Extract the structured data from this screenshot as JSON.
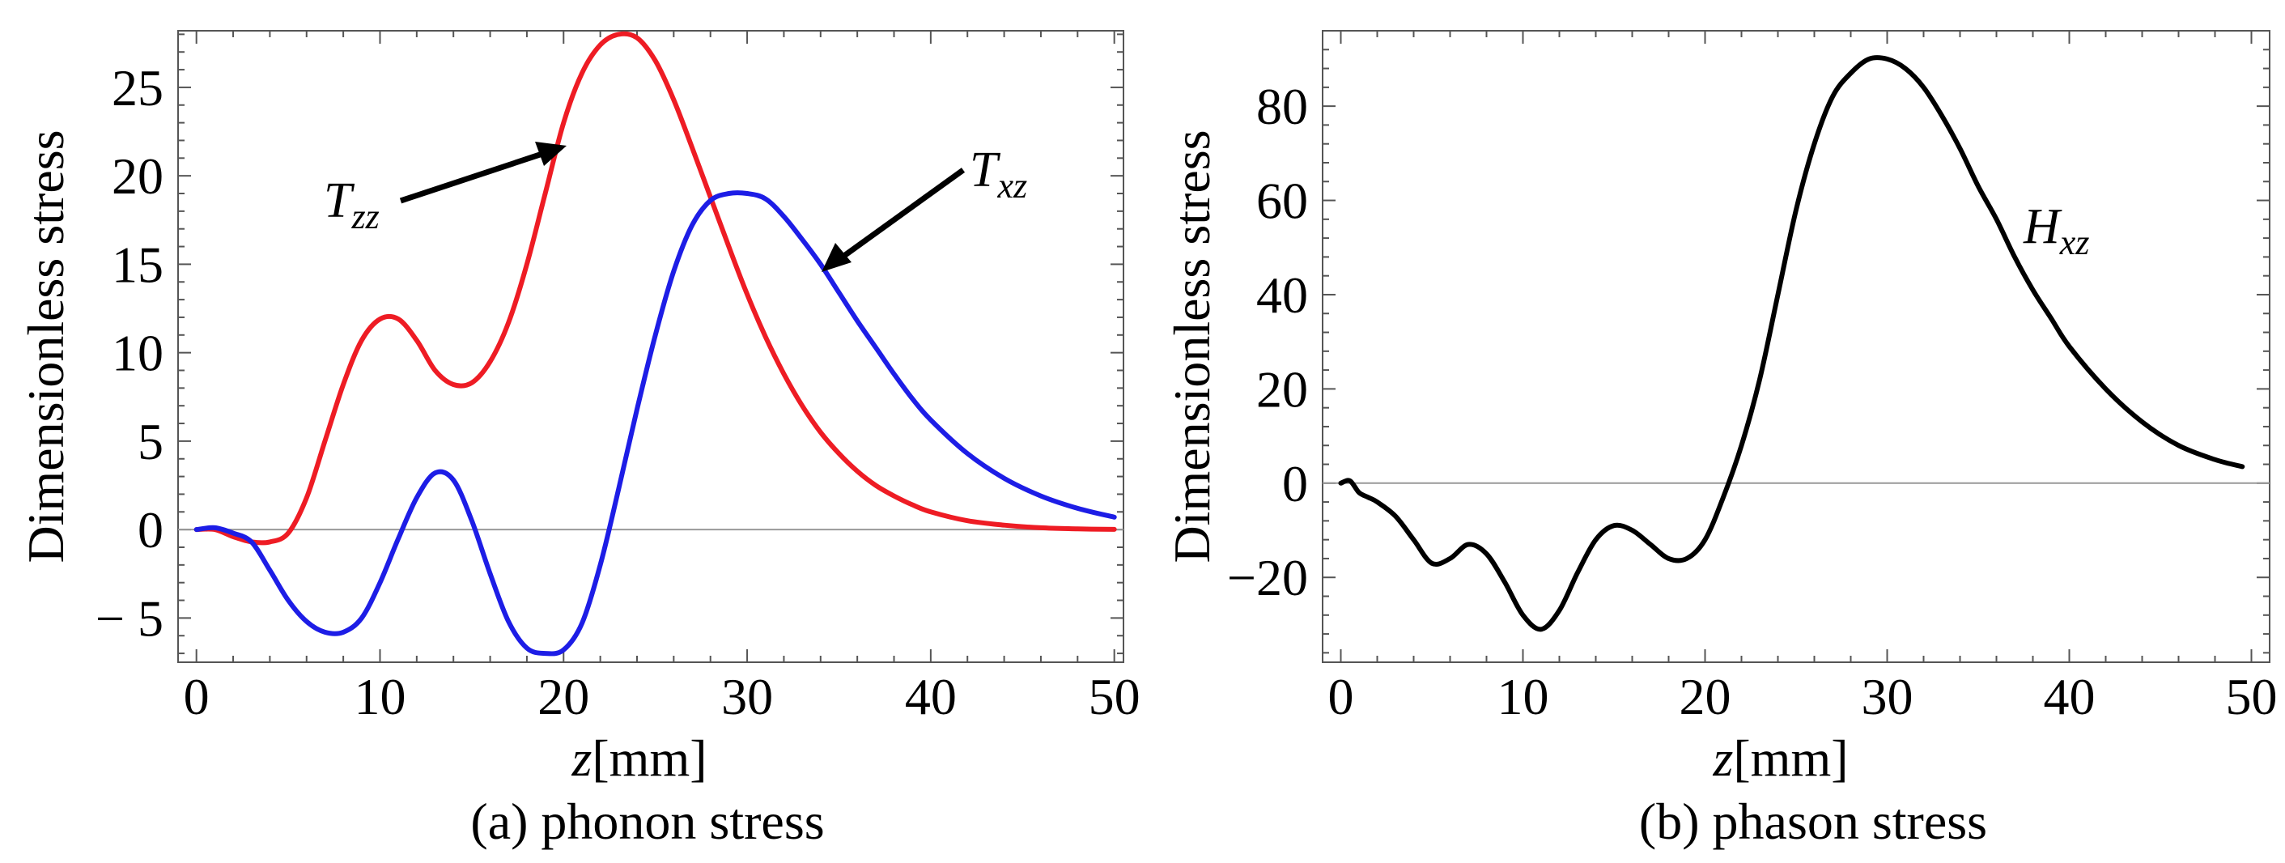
{
  "chart_data": [
    {
      "id": "a",
      "type": "line",
      "caption": "(a) phonon stress",
      "xlabel_var": "z",
      "xlabel_unit": "[mm]",
      "ylabel": "Dimensionless stress",
      "xlim": [
        -1,
        50.5
      ],
      "ylim": [
        -7.5,
        28.2
      ],
      "xticks": [
        0,
        10,
        20,
        30,
        40,
        50
      ],
      "yticks": [
        -5,
        0,
        5,
        10,
        15,
        20,
        25
      ],
      "ytick_labels": [
        "− 5",
        "0",
        "5",
        "10",
        "15",
        "20",
        "25"
      ],
      "series": [
        {
          "name": "T_zz",
          "color": "#ee1c24",
          "x": [
            0,
            1,
            2,
            3,
            4,
            5,
            6,
            7,
            8,
            9,
            10,
            11,
            12,
            13,
            14,
            15,
            16,
            17,
            18,
            19,
            20,
            21,
            22,
            23,
            24,
            25,
            26,
            27,
            28,
            29,
            30,
            31,
            32,
            33,
            34,
            35,
            36,
            37,
            38,
            39,
            40,
            42,
            44,
            46,
            48,
            50
          ],
          "y": [
            0,
            0,
            -0.4,
            -0.7,
            -0.7,
            -0.2,
            1.8,
            5.0,
            8.2,
            10.7,
            11.9,
            11.9,
            10.7,
            9.0,
            8.2,
            8.3,
            9.5,
            11.7,
            15.0,
            19.0,
            23.0,
            25.8,
            27.4,
            28.0,
            27.8,
            26.5,
            24.3,
            21.6,
            18.8,
            16.0,
            13.3,
            10.9,
            8.8,
            7.0,
            5.5,
            4.3,
            3.3,
            2.5,
            1.9,
            1.4,
            1.0,
            0.5,
            0.25,
            0.1,
            0.04,
            0.01
          ]
        },
        {
          "name": "T_xz",
          "color": "#1d1de6",
          "x": [
            0,
            1,
            2,
            3,
            4,
            5,
            6,
            7,
            8,
            9,
            10,
            11,
            12,
            13,
            14,
            15,
            16,
            17,
            18,
            19,
            20,
            21,
            22,
            23,
            24,
            25,
            26,
            27,
            28,
            29,
            30,
            31,
            32,
            33,
            34,
            35,
            36,
            37,
            38,
            39,
            40,
            42,
            44,
            46,
            48,
            50
          ],
          "y": [
            0,
            0.1,
            -0.2,
            -0.7,
            -2.3,
            -4.0,
            -5.2,
            -5.8,
            -5.8,
            -5.0,
            -3.0,
            -0.5,
            1.8,
            3.2,
            2.8,
            0.5,
            -2.5,
            -5.2,
            -6.7,
            -7.0,
            -6.8,
            -5.3,
            -2.0,
            2.3,
            6.8,
            11.0,
            14.6,
            17.2,
            18.6,
            19.0,
            19.0,
            18.7,
            17.7,
            16.4,
            15.0,
            13.4,
            11.8,
            10.3,
            8.8,
            7.4,
            6.2,
            4.3,
            2.9,
            1.9,
            1.2,
            0.7
          ]
        }
      ],
      "annotations": [
        {
          "base": "T",
          "sub": "zz"
        },
        {
          "base": "T",
          "sub": "xz"
        }
      ]
    },
    {
      "id": "b",
      "type": "line",
      "caption": "(b) phason stress",
      "xlabel_var": "z",
      "xlabel_unit": "[mm]",
      "ylabel": "Dimensionless stress",
      "xlim": [
        -1,
        51
      ],
      "ylim": [
        -38,
        96
      ],
      "xticks": [
        0,
        10,
        20,
        30,
        40,
        50
      ],
      "yticks": [
        -20,
        0,
        20,
        40,
        60,
        80
      ],
      "ytick_labels": [
        "−20",
        "0",
        "20",
        "40",
        "60",
        "80"
      ],
      "series": [
        {
          "name": "H_xz",
          "color": "#000000",
          "x": [
            0,
            0.5,
            1,
            1.5,
            2,
            3,
            4,
            5,
            6,
            7,
            8,
            9,
            10,
            11,
            12,
            13,
            14,
            15,
            16,
            17,
            18,
            19,
            20,
            21,
            22,
            23,
            24,
            25,
            26,
            27,
            28,
            29,
            30,
            31,
            32,
            33,
            34,
            35,
            36,
            37,
            38,
            39,
            40,
            42,
            44,
            46,
            48,
            49.5
          ],
          "y": [
            0,
            0.5,
            -2,
            -3,
            -4,
            -7,
            -12,
            -17,
            -16,
            -13,
            -15,
            -21,
            -28,
            -31,
            -27,
            -19,
            -12,
            -9,
            -10,
            -13,
            -16,
            -16,
            -12,
            -3,
            8,
            22,
            40,
            58,
            72,
            82,
            87,
            90,
            90,
            88,
            84,
            78,
            71,
            63,
            56,
            48,
            41,
            35,
            29,
            20,
            13,
            8,
            5,
            3.5
          ]
        }
      ],
      "annotations": [
        {
          "base": "H",
          "sub": "xz"
        }
      ]
    }
  ]
}
